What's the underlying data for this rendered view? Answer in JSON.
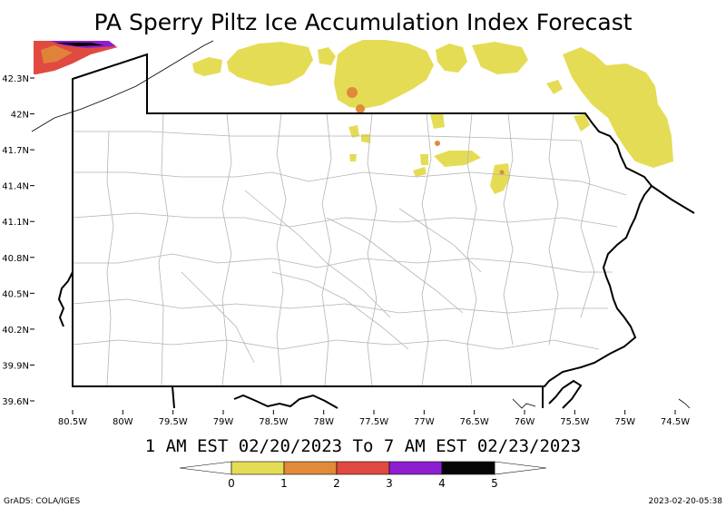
{
  "title": "PA Sperry Piltz Ice Accumulation Index Forecast",
  "valid_period": "1 AM EST 02/20/2023 To 7 AM EST 02/23/2023",
  "footer_left": "GrADS: COLA/IGES",
  "footer_right": "2023-02-20-05:38",
  "lat_ticks": [
    "42.3N",
    "42N",
    "41.7N",
    "41.4N",
    "41.1N",
    "40.8N",
    "40.5N",
    "40.2N",
    "39.9N",
    "39.6N"
  ],
  "lon_ticks": [
    "80.5W",
    "80W",
    "79.5W",
    "79W",
    "78.5W",
    "78W",
    "77.5W",
    "77W",
    "76.5W",
    "76W",
    "75.5W",
    "75W",
    "74.5W"
  ],
  "legend": {
    "labels": [
      "0",
      "1",
      "2",
      "3",
      "4",
      "5"
    ],
    "colors": [
      "#e5dc55",
      "#e08a3a",
      "#e04a40",
      "#8e1fd0",
      "#050505"
    ]
  },
  "colors": {
    "ice_low": "#e5dc55",
    "ice_mid": "#e08a3a",
    "ice_high": "#e04a40",
    "ice_very_high": "#8e1fd0",
    "border": "#000000",
    "county_lines": "#b4b4b4"
  }
}
